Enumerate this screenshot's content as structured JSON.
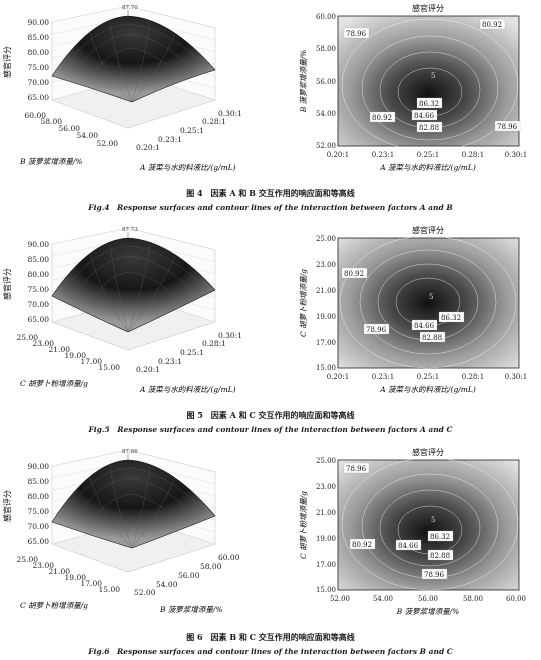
{
  "figures": [
    {
      "id": "fig4",
      "surface": {
        "peak_label": "87.70",
        "z_ticks": [
          "90.00",
          "85.00",
          "80.00",
          "75.00",
          "70.00",
          "65.00"
        ],
        "z_label": "感官评分",
        "left_ticks": [
          "60.00",
          "58.00",
          "56.00",
          "54.00",
          "52.00"
        ],
        "left_label": "B 菠萝浆增添量/%",
        "right_ticks": [
          "0.30:1",
          "0.28:1",
          "0.25:1",
          "0.23:1",
          "0.20:1"
        ],
        "right_label": "A 菠菜与水的料液比/(g/mL)"
      },
      "contour": {
        "title": "感官评分",
        "x_ticks": [
          "0.20:1",
          "0.23:1",
          "0.25:1",
          "0.28:1",
          "0.30:1"
        ],
        "x_label": "A 菠菜与水的料液比/(g/mL)",
        "y_ticks": [
          "60.00",
          "58.00",
          "56.00",
          "54.00",
          "52.00"
        ],
        "y_label": "B 菠萝浆增添量/%",
        "center_mark": "5",
        "labels": [
          "78.96",
          "80.92",
          "80.92",
          "86.32",
          "84.66",
          "82.88",
          "78.96"
        ]
      },
      "caption_cn": "图 4　因素 A 和 B 交互作用的响应面和等高线",
      "caption_en": "Fig.4　Response surfaces and contour lines of the interaction between factors A and B"
    },
    {
      "id": "fig5",
      "surface": {
        "peak_label": "87.73",
        "z_ticks": [
          "90.00",
          "85.00",
          "80.00",
          "75.00",
          "70.00",
          "65.00"
        ],
        "z_label": "感官评分",
        "left_ticks": [
          "25.00",
          "23.00",
          "21.00",
          "19.00",
          "17.00",
          "15.00"
        ],
        "left_label": "C 胡萝卜粉增添量/g",
        "right_ticks": [
          "0.30:1",
          "0.28:1",
          "0.25:1",
          "0.23:1",
          "0.20:1"
        ],
        "right_label": "A 菠菜与水的料液比/(g/mL)"
      },
      "contour": {
        "title": "感官评分",
        "x_ticks": [
          "0.20:1",
          "0.23:1",
          "0.25:1",
          "0.28:1",
          "0.30:1"
        ],
        "x_label": "A 菠菜与水的料液比/(g/mL)",
        "y_ticks": [
          "25.00",
          "23.00",
          "21.00",
          "19.00",
          "17.00",
          "15.00"
        ],
        "y_label": "C 胡萝卜粉增添量/g",
        "center_mark": "5",
        "labels": [
          "80.92",
          "78.96",
          "86.32",
          "84.66",
          "82.88"
        ]
      },
      "caption_cn": "图 5　因素 A 和 C 交互作用的响应面和等高线",
      "caption_en": "Fig.5　Response surfaces and contour lines of the interaction between factors A and C"
    },
    {
      "id": "fig6",
      "surface": {
        "peak_label": "87.66",
        "z_ticks": [
          "90.00",
          "85.00",
          "80.00",
          "75.00",
          "70.00",
          "65.00"
        ],
        "z_label": "感官评分",
        "left_ticks": [
          "25.00",
          "23.00",
          "21.00",
          "19.00",
          "17.00",
          "15.00"
        ],
        "left_label": "C 胡萝卜粉增添量/g",
        "right_ticks": [
          "60.00",
          "58.00",
          "56.00",
          "54.00",
          "52.00"
        ],
        "right_label": "B 菠萝浆增添量/%"
      },
      "contour": {
        "title": "感官评分",
        "x_ticks": [
          "52.00",
          "54.00",
          "56.00",
          "58.00",
          "60.00"
        ],
        "x_label": "B 菠萝浆增添量/%",
        "y_ticks": [
          "25.00",
          "23.00",
          "21.00",
          "19.00",
          "17.00",
          "15.00"
        ],
        "y_label": "C 胡萝卜粉增添量/g",
        "center_mark": "5",
        "labels": [
          "78.96",
          "80.92",
          "84.66",
          "86.32",
          "82.88",
          "78.96"
        ]
      },
      "caption_cn": "图 6　因素 B 和 C 交互作用的响应面和等高线",
      "caption_en": "Fig.6　Response surfaces and contour lines of the interaction between factors B and C"
    }
  ]
}
